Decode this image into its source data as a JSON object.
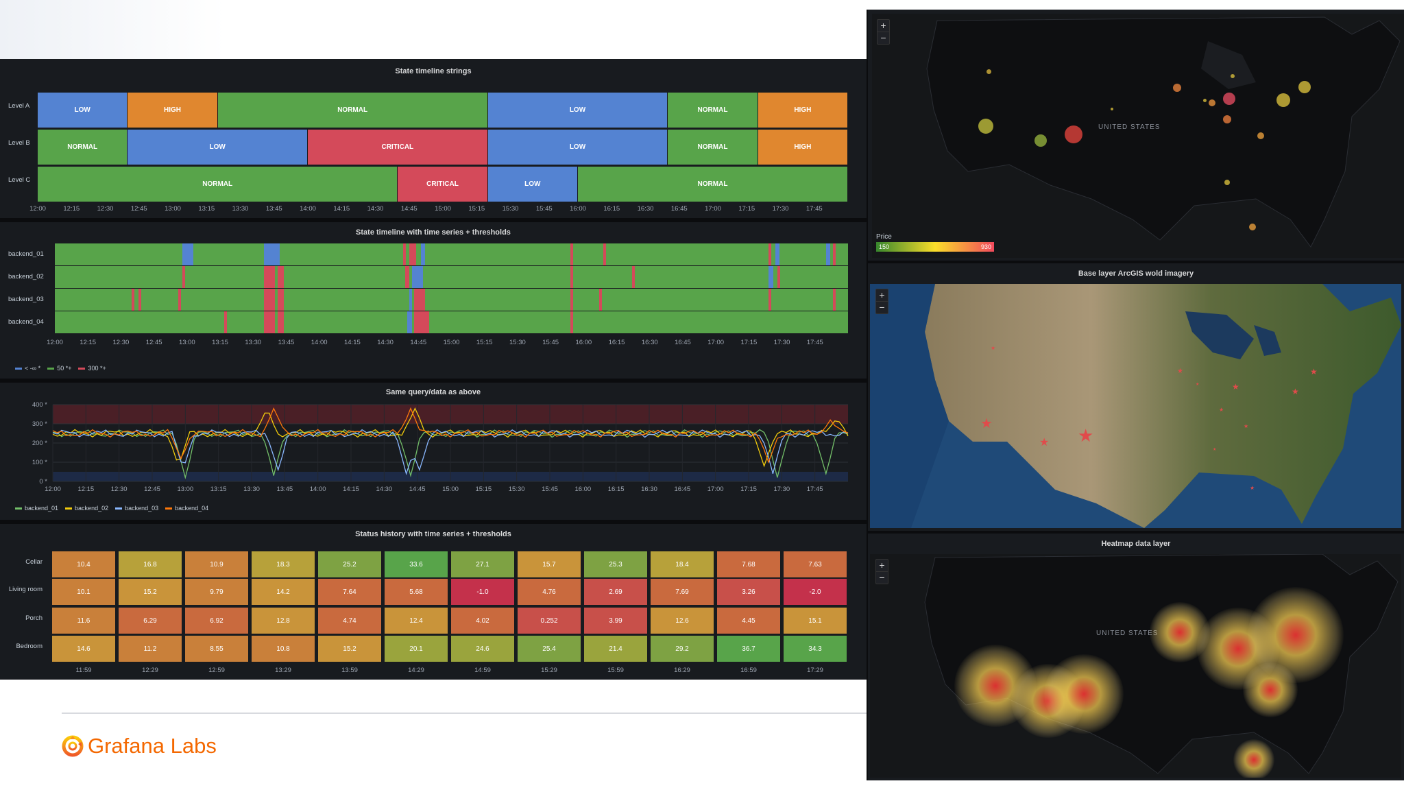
{
  "state_timeline": {
    "title": "State timeline strings",
    "rows": [
      {
        "label": "Level A",
        "segments": [
          {
            "state": "LOW",
            "start": "12:00",
            "end": "12:40"
          },
          {
            "state": "HIGH",
            "start": "12:40",
            "end": "13:20"
          },
          {
            "state": "NORMAL",
            "start": "13:20",
            "end": "15:20"
          },
          {
            "state": "LOW",
            "start": "15:20",
            "end": "16:40"
          },
          {
            "state": "NORMAL",
            "start": "16:40",
            "end": "17:20"
          },
          {
            "state": "HIGH",
            "start": "17:20",
            "end": "18:00"
          }
        ]
      },
      {
        "label": "Level B",
        "segments": [
          {
            "state": "NORMAL",
            "start": "12:00",
            "end": "12:40"
          },
          {
            "state": "LOW",
            "start": "12:40",
            "end": "14:00"
          },
          {
            "state": "CRITICAL",
            "start": "14:00",
            "end": "15:20"
          },
          {
            "state": "LOW",
            "start": "15:20",
            "end": "16:40"
          },
          {
            "state": "NORMAL",
            "start": "16:40",
            "end": "17:20"
          },
          {
            "state": "HIGH",
            "start": "17:20",
            "end": "18:00"
          }
        ]
      },
      {
        "label": "Level C",
        "segments": [
          {
            "state": "NORMAL",
            "start": "12:00",
            "end": "14:40"
          },
          {
            "state": "CRITICAL",
            "start": "14:40",
            "end": "15:20"
          },
          {
            "state": "LOW",
            "start": "15:20",
            "end": "16:00"
          },
          {
            "state": "NORMAL",
            "start": "16:00",
            "end": "18:00"
          }
        ]
      }
    ],
    "ticks": [
      "12:00",
      "12:15",
      "12:30",
      "12:45",
      "13:00",
      "13:15",
      "13:30",
      "13:45",
      "14:00",
      "14:15",
      "14:30",
      "14:45",
      "15:00",
      "15:15",
      "15:30",
      "15:45",
      "16:00",
      "16:15",
      "16:30",
      "16:45",
      "17:00",
      "17:15",
      "17:30",
      "17:45"
    ],
    "colors": {
      "LOW": "#5483d2",
      "HIGH": "#e0872f",
      "NORMAL": "#58a44a",
      "CRITICAL": "#d44a5a"
    }
  },
  "threshold_timeline": {
    "title": "State timeline with time series + thresholds",
    "rows": [
      {
        "label": "backend_01",
        "events": [
          {
            "t": "12:58",
            "dur": 5,
            "level": "low"
          },
          {
            "t": "13:35",
            "dur": 5,
            "level": "low"
          },
          {
            "t": "13:40",
            "dur": 2,
            "level": "low"
          },
          {
            "t": "14:38",
            "dur": 1,
            "level": "high"
          },
          {
            "t": "14:41",
            "dur": 3,
            "level": "high"
          },
          {
            "t": "14:46",
            "dur": 2,
            "level": "low"
          },
          {
            "t": "15:54",
            "dur": 1,
            "level": "high"
          },
          {
            "t": "16:09",
            "dur": 1,
            "level": "high"
          },
          {
            "t": "17:24",
            "dur": 1,
            "level": "high"
          },
          {
            "t": "17:27",
            "dur": 2,
            "level": "low"
          },
          {
            "t": "17:50",
            "dur": 2,
            "level": "low"
          },
          {
            "t": "17:53",
            "dur": 1,
            "level": "high"
          }
        ]
      },
      {
        "label": "backend_02",
        "events": [
          {
            "t": "12:58",
            "dur": 1,
            "level": "high"
          },
          {
            "t": "13:35",
            "dur": 5,
            "level": "high"
          },
          {
            "t": "13:41",
            "dur": 3,
            "level": "high"
          },
          {
            "t": "14:39",
            "dur": 2,
            "level": "high"
          },
          {
            "t": "14:42",
            "dur": 3,
            "level": "low"
          },
          {
            "t": "14:45",
            "dur": 2,
            "level": "low"
          },
          {
            "t": "15:54",
            "dur": 1,
            "level": "high"
          },
          {
            "t": "16:22",
            "dur": 1,
            "level": "high"
          },
          {
            "t": "17:24",
            "dur": 2,
            "level": "low"
          },
          {
            "t": "17:28",
            "dur": 1,
            "level": "high"
          }
        ]
      },
      {
        "label": "backend_03",
        "events": [
          {
            "t": "12:35",
            "dur": 1,
            "level": "high"
          },
          {
            "t": "12:38",
            "dur": 1,
            "level": "high"
          },
          {
            "t": "12:56",
            "dur": 1,
            "level": "high"
          },
          {
            "t": "13:35",
            "dur": 5,
            "level": "high"
          },
          {
            "t": "13:41",
            "dur": 3,
            "level": "high"
          },
          {
            "t": "14:41",
            "dur": 1,
            "level": "low"
          },
          {
            "t": "14:43",
            "dur": 5,
            "level": "high"
          },
          {
            "t": "15:54",
            "dur": 1,
            "level": "high"
          },
          {
            "t": "16:07",
            "dur": 1,
            "level": "high"
          },
          {
            "t": "17:24",
            "dur": 1,
            "level": "high"
          },
          {
            "t": "17:53",
            "dur": 1,
            "level": "high"
          }
        ]
      },
      {
        "label": "backend_04",
        "events": [
          {
            "t": "13:17",
            "dur": 1,
            "level": "high"
          },
          {
            "t": "13:35",
            "dur": 5,
            "level": "high"
          },
          {
            "t": "13:41",
            "dur": 3,
            "level": "high"
          },
          {
            "t": "14:40",
            "dur": 2,
            "level": "low"
          },
          {
            "t": "14:43",
            "dur": 7,
            "level": "high"
          },
          {
            "t": "15:54",
            "dur": 1,
            "level": "high"
          }
        ]
      }
    ],
    "ticks": [
      "12:00",
      "12:15",
      "12:30",
      "12:45",
      "13:00",
      "13:15",
      "13:30",
      "13:45",
      "14:00",
      "14:15",
      "14:30",
      "14:45",
      "15:00",
      "15:15",
      "15:30",
      "15:45",
      "16:00",
      "16:15",
      "16:30",
      "16:45",
      "17:00",
      "17:15",
      "17:30",
      "17:45"
    ],
    "legend": [
      {
        "label": "< -∞ *",
        "color": "#5483d2"
      },
      {
        "label": "50 *+",
        "color": "#58a44a"
      },
      {
        "label": "300 *+",
        "color": "#d44a5a"
      }
    ],
    "colors": {
      "base": "#58a44a",
      "low": "#5483d2",
      "high": "#d44a5a"
    }
  },
  "chart_data": {
    "type": "line",
    "title": "Same query/data as above",
    "x": [
      "12:00",
      "12:15",
      "12:30",
      "12:45",
      "13:00",
      "13:15",
      "13:30",
      "13:45",
      "14:00",
      "14:15",
      "14:30",
      "14:45",
      "15:00",
      "15:15",
      "15:30",
      "15:45",
      "16:00",
      "16:15",
      "16:30",
      "16:45",
      "17:00",
      "17:15",
      "17:30",
      "17:45"
    ],
    "xlim": [
      "12:00",
      "18:00"
    ],
    "ylim": [
      0,
      400
    ],
    "yticks": [
      "0 *",
      "100 *",
      "200 *",
      "300 *",
      "400 *"
    ],
    "thresholds": [
      {
        "from": 300,
        "to": 400,
        "color": "#4a1f26"
      },
      {
        "from": 0,
        "to": 50,
        "color": "#1d2a46"
      }
    ],
    "grid": true,
    "legend_position": "bottom-left",
    "series": [
      {
        "name": "backend_01",
        "color": "#73bf69",
        "spikes": [
          {
            "t": "13:00",
            "v": 20
          },
          {
            "t": "13:40",
            "v": 30
          },
          {
            "t": "14:42",
            "v": 30
          },
          {
            "t": "17:28",
            "v": 20
          },
          {
            "t": "17:50",
            "v": 40
          }
        ]
      },
      {
        "name": "backend_02",
        "color": "#f2cc0c",
        "spikes": [
          {
            "t": "12:57",
            "v": 80
          },
          {
            "t": "13:37",
            "v": 380
          },
          {
            "t": "14:44",
            "v": 380
          },
          {
            "t": "17:22",
            "v": 80
          },
          {
            "t": "17:55",
            "v": 330
          }
        ]
      },
      {
        "name": "backend_03",
        "color": "#8ab8ff",
        "spikes": [
          {
            "t": "12:59",
            "v": 60
          },
          {
            "t": "13:42",
            "v": 60
          },
          {
            "t": "14:40",
            "v": 40
          },
          {
            "t": "14:46",
            "v": 60
          },
          {
            "t": "17:26",
            "v": 40
          }
        ]
      },
      {
        "name": "backend_04",
        "color": "#ff780a",
        "spikes": [
          {
            "t": "12:58",
            "v": 120
          },
          {
            "t": "13:40",
            "v": 380
          },
          {
            "t": "14:42",
            "v": 380
          },
          {
            "t": "17:24",
            "v": 100
          },
          {
            "t": "17:52",
            "v": 320
          }
        ]
      }
    ]
  },
  "status_history": {
    "title": "Status history with time series + thresholds",
    "rows": [
      {
        "label": "Cellar",
        "values": [
          "10.4",
          "16.8",
          "10.9",
          "18.3",
          "25.2",
          "33.6",
          "27.1",
          "15.7",
          "25.3",
          "18.4",
          "7.68",
          "7.63"
        ]
      },
      {
        "label": "Living room",
        "values": [
          "10.1",
          "15.2",
          "9.79",
          "14.2",
          "7.64",
          "5.68",
          "-1.0",
          "4.76",
          "2.69",
          "7.69",
          "3.26",
          "-2.0"
        ]
      },
      {
        "label": "Porch",
        "values": [
          "11.6",
          "6.29",
          "6.92",
          "12.8",
          "4.74",
          "12.4",
          "4.02",
          "0.252",
          "3.99",
          "12.6",
          "4.45",
          "15.1"
        ]
      },
      {
        "label": "Bedroom",
        "values": [
          "14.6",
          "11.2",
          "8.55",
          "10.8",
          "15.2",
          "20.1",
          "24.6",
          "25.4",
          "21.4",
          "29.2",
          "36.7",
          "34.3"
        ]
      }
    ],
    "ticks": [
      "11:59",
      "12:29",
      "12:59",
      "13:29",
      "13:59",
      "14:29",
      "14:59",
      "15:29",
      "15:59",
      "16:29",
      "16:59",
      "17:29"
    ]
  },
  "geomap_markers": {
    "country_label": "UNITED STATES",
    "legend_title": "Price",
    "legend_min": "150",
    "legend_max": "930",
    "zoom_in": "+",
    "zoom_out": "−"
  },
  "geomap_imagery": {
    "title": "Base layer ArcGIS wold imagery",
    "zoom_in": "+",
    "zoom_out": "−"
  },
  "geomap_heatmap": {
    "title": "Heatmap data layer",
    "country_label": "UNITED STATES",
    "zoom_in": "+",
    "zoom_out": "−"
  },
  "brand": {
    "name": "Grafana Labs"
  }
}
